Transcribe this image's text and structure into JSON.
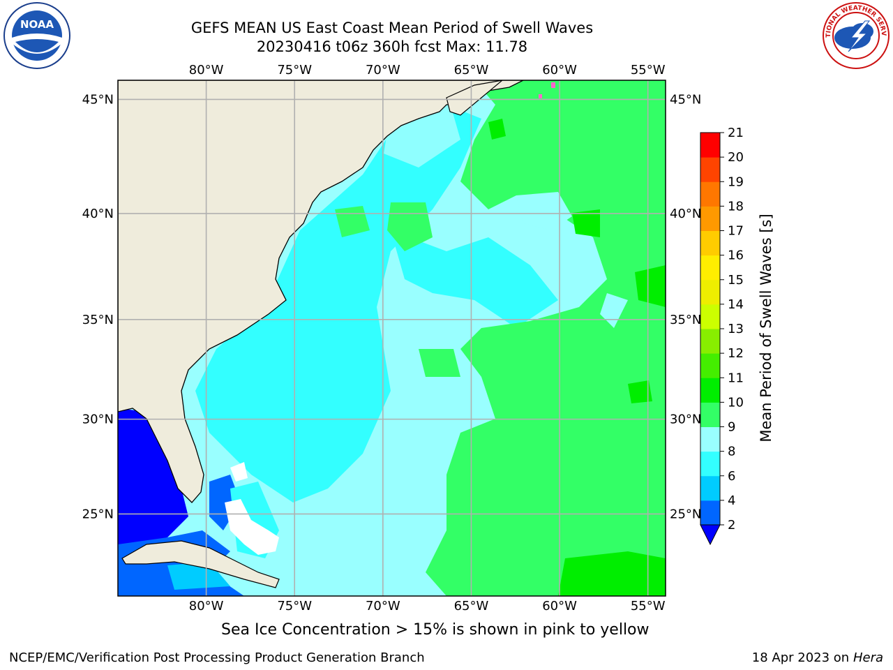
{
  "header": {
    "title_line1": "GEFS MEAN US East Coast Mean Period of Swell Waves",
    "title_line2": "20230416 t06z 360h fcst   Max: 11.78"
  },
  "logos": {
    "left": {
      "text": "NOAA",
      "icon": "noaa-logo"
    },
    "right": {
      "text": "NATIONAL WEATHER SERVICE",
      "icon": "nws-logo"
    }
  },
  "map": {
    "lon_labels": [
      "80°W",
      "75°W",
      "70°W",
      "65°W",
      "60°W",
      "55°W"
    ],
    "lat_labels": [
      "45°N",
      "40°N",
      "35°N",
      "30°N",
      "25°N"
    ],
    "lon_values": [
      -80,
      -75,
      -70,
      -65,
      -60,
      -55
    ],
    "lat_values": [
      45,
      40,
      35,
      30,
      25
    ],
    "extent": {
      "lon_min": -85,
      "lon_max": -54,
      "lat_min": 20.5,
      "lat_max": 45.8
    },
    "colors": {
      "land": "#efecdc",
      "grid": "#b0b0b0",
      "coast": "#000000"
    }
  },
  "colorbar": {
    "label": "Mean Period of Swell Waves [s]",
    "ticks": [
      "2",
      "4",
      "6",
      "8",
      "9",
      "10",
      "11",
      "12",
      "13",
      "14",
      "15",
      "16",
      "17",
      "18",
      "19",
      "20",
      "21"
    ],
    "colors": [
      "#0000ff",
      "#0066ff",
      "#00ccff",
      "#33ffff",
      "#99ffff",
      "#33ff66",
      "#00ee00",
      "#44ee00",
      "#88ee00",
      "#ccff00",
      "#eeee00",
      "#ffee00",
      "#ffcc00",
      "#ff9900",
      "#ff7700",
      "#ff4400",
      "#ff0000"
    ]
  },
  "caption": "Sea Ice Concentration > 15% is shown in pink to yellow",
  "footer": {
    "left": "NCEP/EMC/Verification Post Processing Product Generation Branch",
    "date": "18 Apr 2023 on",
    "machine": "Hera"
  }
}
